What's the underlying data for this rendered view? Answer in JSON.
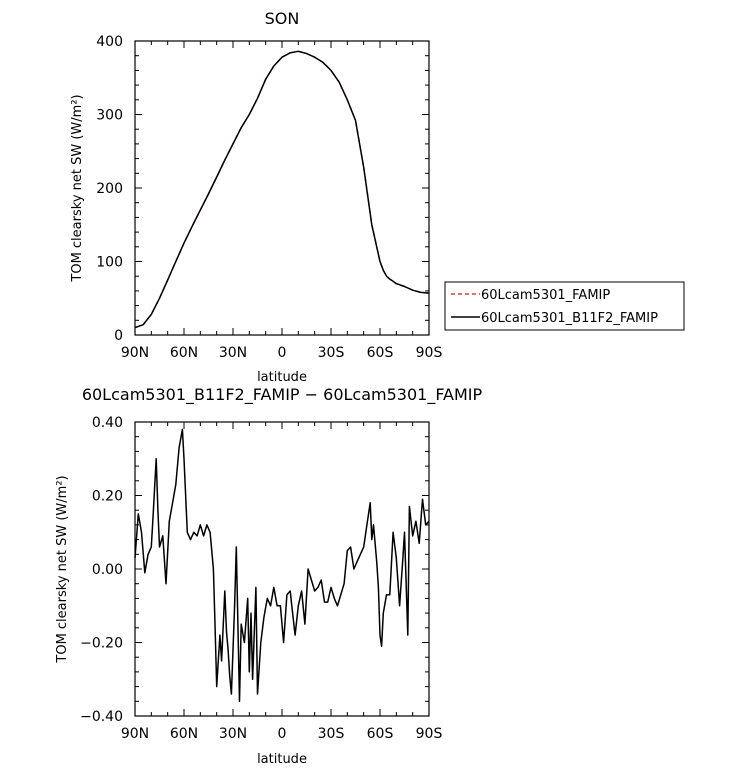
{
  "chart_data": [
    {
      "type": "line",
      "title": "SON",
      "xlabel": "latitude",
      "ylabel": "TOM clearsky net SW (W/m²)",
      "ylim": [
        0,
        400
      ],
      "yticks": [
        "0",
        "100",
        "200",
        "300",
        "400"
      ],
      "xticks": [
        "90N",
        "60N",
        "30N",
        "0",
        "30S",
        "60S",
        "90S"
      ],
      "x": [
        -90,
        -85,
        -80,
        -75,
        -70,
        -65,
        -60,
        -55,
        -50,
        -45,
        -40,
        -35,
        -30,
        -25,
        -20,
        -15,
        -10,
        -5,
        0,
        5,
        10,
        15,
        20,
        25,
        30,
        35,
        40,
        45,
        50,
        55,
        60,
        62,
        64,
        66,
        68,
        70,
        75,
        80,
        85,
        90
      ],
      "series": [
        {
          "name": "60Lcam5301_FAMIP",
          "style": "dashed",
          "color": "#e8383d",
          "values": [
            10,
            14,
            28,
            50,
            75,
            100,
            125,
            148,
            170,
            192,
            215,
            238,
            260,
            282,
            300,
            322,
            348,
            366,
            378,
            384,
            386,
            383,
            378,
            371,
            360,
            344,
            320,
            292,
            228,
            150,
            100,
            88,
            80,
            76,
            73,
            70,
            66,
            61,
            58,
            57
          ]
        },
        {
          "name": "60Lcam5301_B11F2_FAMIP",
          "style": "solid",
          "color": "#000000",
          "values": [
            10,
            14,
            28,
            50,
            75,
            100,
            125,
            148,
            170,
            192,
            215,
            238,
            260,
            282,
            300,
            322,
            348,
            366,
            378,
            384,
            386,
            383,
            378,
            371,
            360,
            344,
            320,
            292,
            228,
            150,
            100,
            88,
            80,
            76,
            73,
            70,
            66,
            61,
            58,
            57
          ]
        }
      ],
      "legend": "right"
    },
    {
      "type": "line",
      "title": "60Lcam5301_B11F2_FAMIP − 60Lcam5301_FAMIP",
      "xlabel": "latitude",
      "ylabel": "TOM clearsky net SW (W/m²)",
      "ylim": [
        -0.4,
        0.4
      ],
      "yticks": [
        "−0.40",
        "−0.20",
        "0.00",
        "0.20",
        "0.40"
      ],
      "xticks": [
        "90N",
        "60N",
        "30N",
        "0",
        "30S",
        "60S",
        "90S"
      ],
      "x": [
        -90,
        -88,
        -86,
        -84,
        -82,
        -80,
        -79,
        -77,
        -76,
        -75,
        -73,
        -71,
        -69,
        -67,
        -65,
        -63,
        -61,
        -60,
        -58,
        -56,
        -54,
        -52,
        -50,
        -48,
        -46,
        -44,
        -42,
        -41,
        -40,
        -38,
        -37,
        -35,
        -34,
        -33,
        -32,
        -31,
        -29,
        -28,
        -26,
        -25,
        -23,
        -21,
        -20,
        -19,
        -18,
        -16,
        -15,
        -13,
        -11,
        -9,
        -7,
        -5,
        -3,
        -1,
        1,
        3,
        5,
        6,
        8,
        10,
        12,
        14,
        16,
        18,
        20,
        22,
        24,
        26,
        28,
        30,
        32,
        34,
        36,
        38,
        40,
        42,
        44,
        46,
        48,
        50,
        52,
        54,
        55,
        56,
        58,
        59,
        60,
        61,
        62,
        64,
        66,
        68,
        70,
        72,
        74,
        75,
        77,
        78,
        80,
        82,
        84,
        86,
        88,
        90
      ],
      "series": [
        {
          "color": "#000000",
          "values": [
            0.03,
            0.15,
            0.1,
            -0.01,
            0.04,
            0.06,
            0.14,
            0.3,
            0.16,
            0.06,
            0.09,
            -0.04,
            0.13,
            0.18,
            0.23,
            0.33,
            0.38,
            0.3,
            0.1,
            0.08,
            0.1,
            0.09,
            0.12,
            0.09,
            0.12,
            0.1,
            0.0,
            -0.15,
            -0.32,
            -0.18,
            -0.25,
            -0.06,
            -0.17,
            -0.22,
            -0.29,
            -0.34,
            -0.1,
            0.06,
            -0.36,
            -0.15,
            -0.2,
            -0.08,
            -0.28,
            -0.12,
            -0.3,
            -0.05,
            -0.34,
            -0.2,
            -0.13,
            -0.08,
            -0.1,
            -0.05,
            -0.1,
            -0.1,
            -0.2,
            -0.07,
            -0.06,
            -0.1,
            -0.18,
            -0.1,
            -0.06,
            -0.15,
            0.0,
            -0.03,
            -0.06,
            -0.05,
            -0.03,
            -0.09,
            -0.09,
            -0.05,
            -0.08,
            -0.1,
            -0.07,
            -0.04,
            0.05,
            0.06,
            0.0,
            0.02,
            0.04,
            0.06,
            0.12,
            0.18,
            0.08,
            0.12,
            0.02,
            -0.05,
            -0.18,
            -0.21,
            -0.12,
            -0.07,
            -0.07,
            0.1,
            0.03,
            -0.1,
            0.03,
            0.1,
            -0.18,
            0.17,
            0.09,
            0.13,
            0.07,
            0.19,
            0.12,
            0.13
          ]
        }
      ]
    }
  ]
}
